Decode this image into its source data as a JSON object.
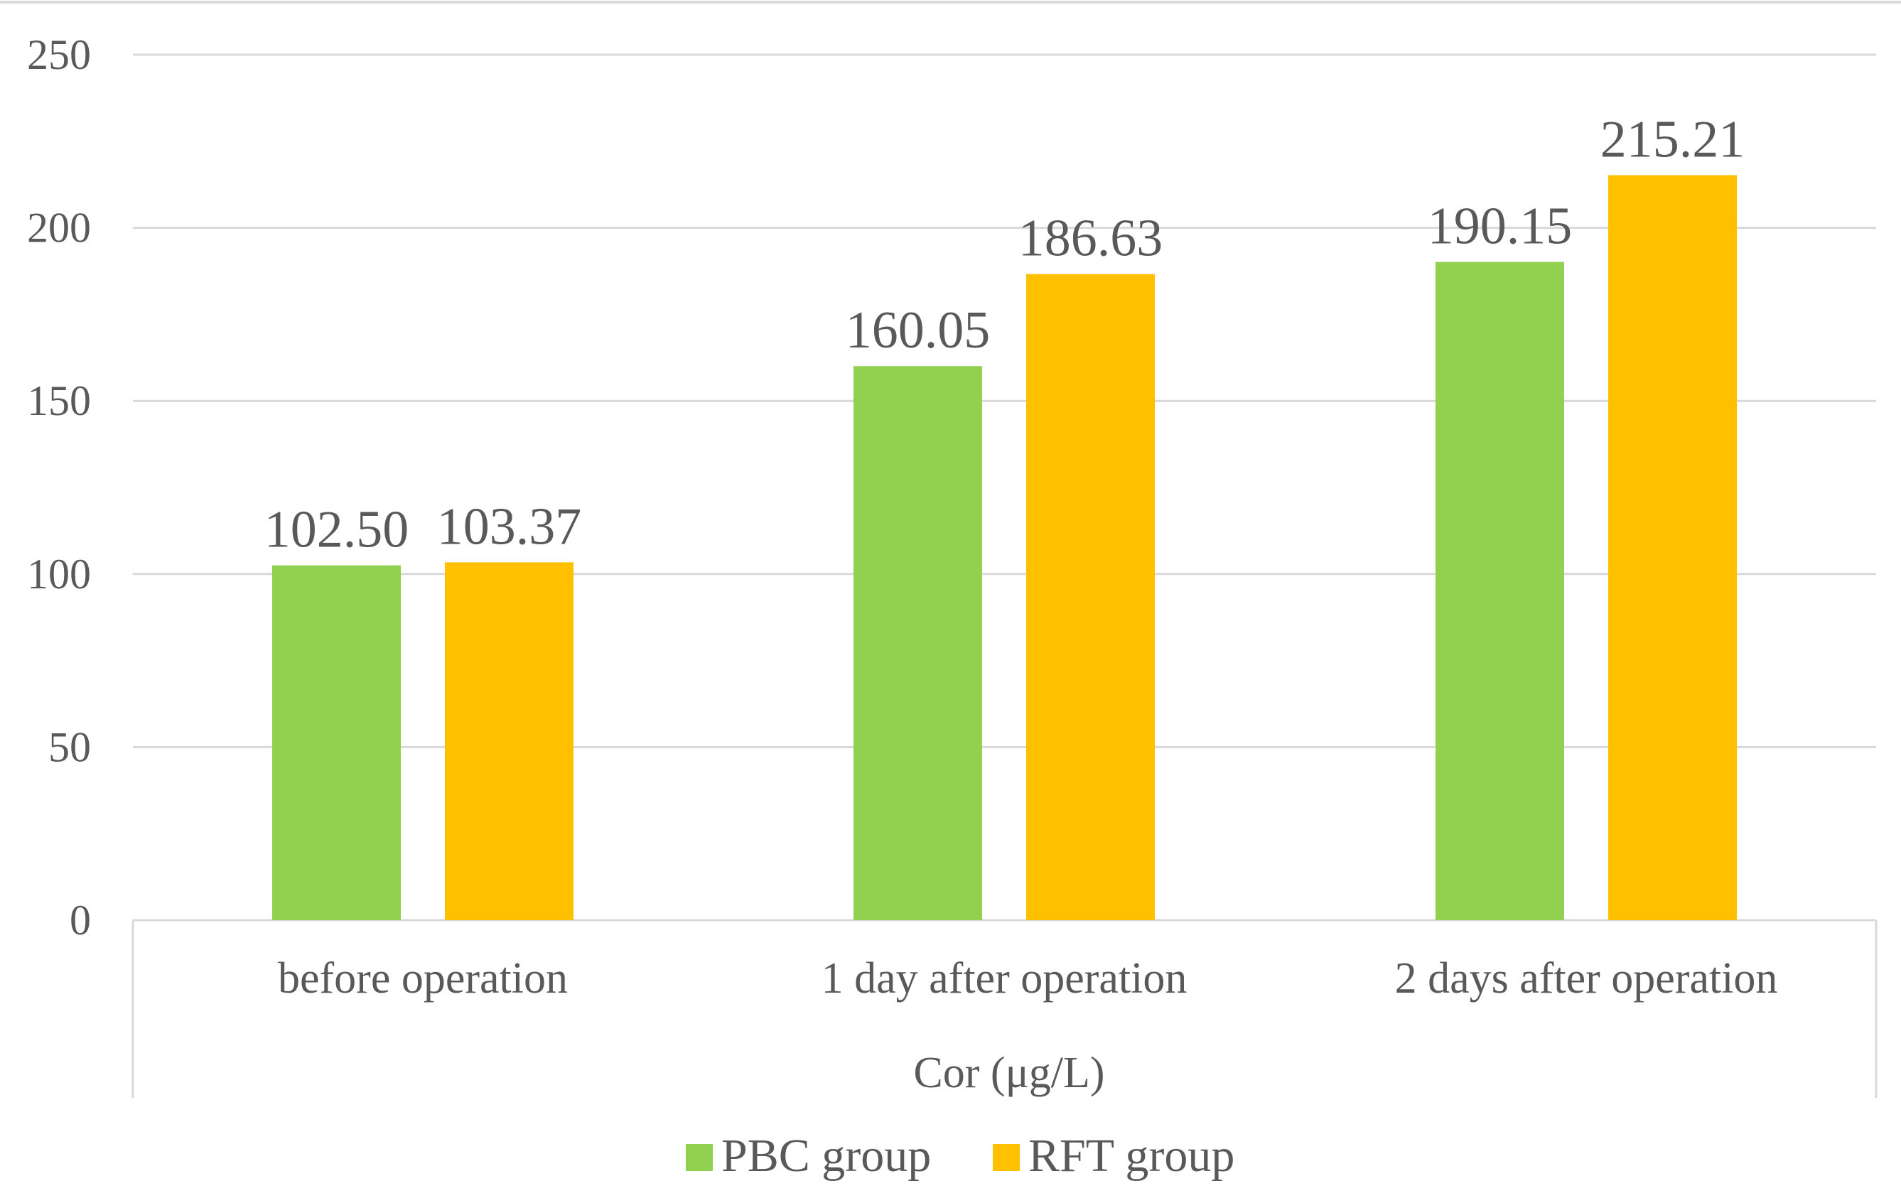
{
  "chart_data": {
    "type": "bar",
    "categories": [
      "before operation",
      "1 day after operation",
      "2 days after operation"
    ],
    "series": [
      {
        "name": "PBC group",
        "values": [
          102.5,
          160.05,
          190.15
        ],
        "labels": [
          "102.50",
          "160.05",
          "190.15"
        ],
        "color": "#92D050"
      },
      {
        "name": "RFT group",
        "values": [
          103.37,
          186.63,
          215.21
        ],
        "labels": [
          "103.37",
          "186.63",
          "215.21"
        ],
        "color": "#FFC000"
      }
    ],
    "xlabel": "Cor (μg/L)",
    "ylabel": "",
    "ylim": [
      0,
      250
    ],
    "yticks": [
      0,
      50,
      100,
      150,
      200,
      250
    ],
    "grid": true,
    "legend": "bottom"
  },
  "colors": {
    "gridline": "#D9D9D9",
    "text": "#595959"
  }
}
